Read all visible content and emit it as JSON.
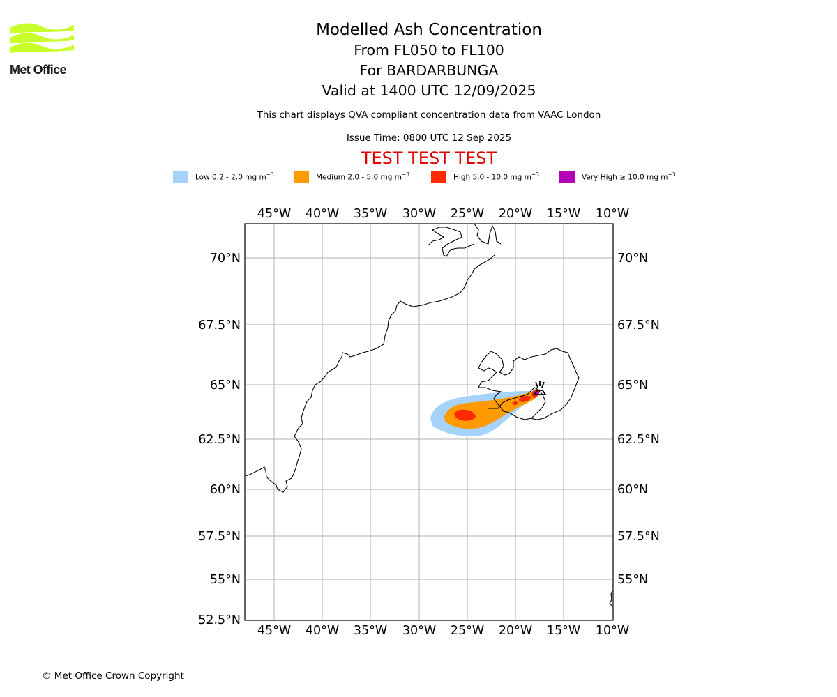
{
  "logo": {
    "name": "Met Office",
    "color": "#c8ff2a"
  },
  "title": {
    "line1": "Modelled Ash Concentration",
    "line2": "From FL050 to FL100",
    "line3": "For BARDARBUNGA",
    "line4": "Valid at 1400 UTC 12/09/2025"
  },
  "subtitle": "This chart displays QVA compliant concentration data from VAAC London",
  "issue_time": "Issue Time: 0800 UTC 12 Sep 2025",
  "test_banner": "TEST TEST TEST",
  "legend": [
    {
      "label": "Low 0.2 - 2.0 mg m",
      "sup": "−3",
      "color": "#a6d3fb"
    },
    {
      "label": "Medium 2.0 - 5.0 mg m",
      "sup": "−3",
      "color": "#ff9a00"
    },
    {
      "label": "High 5.0 - 10.0 mg m",
      "sup": "−3",
      "color": "#ff2a00"
    },
    {
      "label": "Very High ≥ 10.0 mg m",
      "sup": "−3",
      "color": "#b400b4"
    }
  ],
  "map": {
    "lon_ticks": [
      "45°W",
      "40°W",
      "35°W",
      "30°W",
      "25°W",
      "20°W",
      "15°W",
      "10°W"
    ],
    "lat_ticks_left": [
      "70°N",
      "67.5°N",
      "65°N",
      "62.5°N",
      "60°N",
      "57.5°N",
      "55°N",
      "52.5°N"
    ],
    "lat_ticks_right": [
      "70°N",
      "67.5°N",
      "65°N",
      "62.5°N",
      "60°N",
      "57.5°N",
      "55°N"
    ],
    "gridlines": true,
    "volcano": "BARDARBUNGA"
  },
  "copyright": "© Met Office Crown Copyright"
}
